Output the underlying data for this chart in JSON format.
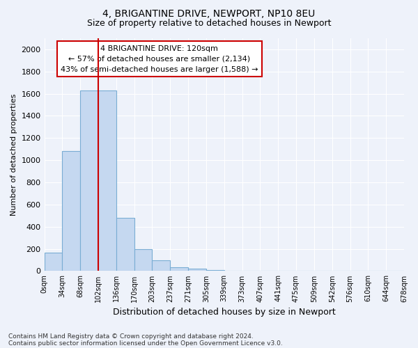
{
  "title1": "4, BRIGANTINE DRIVE, NEWPORT, NP10 8EU",
  "title2": "Size of property relative to detached houses in Newport",
  "xlabel": "Distribution of detached houses by size in Newport",
  "ylabel": "Number of detached properties",
  "bar_color": "#c5d8f0",
  "bar_edge_color": "#7aadd4",
  "bar_values": [
    165,
    1080,
    1630,
    1630,
    480,
    200,
    100,
    35,
    20,
    10,
    0,
    0,
    0,
    0,
    0,
    0,
    0,
    0,
    0,
    0
  ],
  "categories": [
    "0sqm",
    "34sqm",
    "68sqm",
    "102sqm",
    "136sqm",
    "170sqm",
    "203sqm",
    "237sqm",
    "271sqm",
    "305sqm",
    "339sqm",
    "373sqm",
    "407sqm",
    "441sqm",
    "475sqm",
    "509sqm",
    "542sqm",
    "576sqm",
    "610sqm",
    "644sqm",
    "678sqm"
  ],
  "ylim": [
    0,
    2100
  ],
  "yticks": [
    0,
    200,
    400,
    600,
    800,
    1000,
    1200,
    1400,
    1600,
    1800,
    2000
  ],
  "red_line_x": 3.0,
  "annotation_title": "4 BRIGANTINE DRIVE: 120sqm",
  "annotation_line1": "← 57% of detached houses are smaller (2,134)",
  "annotation_line2": "43% of semi-detached houses are larger (1,588) →",
  "annotation_box_color": "#ffffff",
  "annotation_border_color": "#cc0000",
  "footer1": "Contains HM Land Registry data © Crown copyright and database right 2024.",
  "footer2": "Contains public sector information licensed under the Open Government Licence v3.0.",
  "background_color": "#eef2fa",
  "grid_color": "#ffffff"
}
